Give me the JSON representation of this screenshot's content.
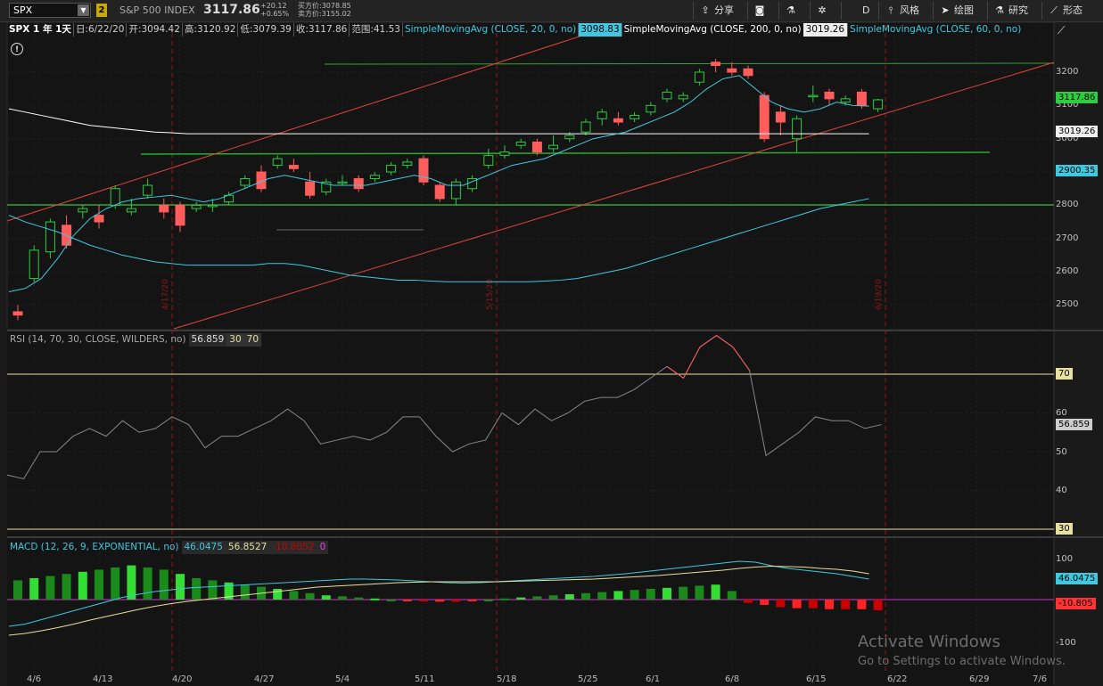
{
  "toolbar": {
    "symbol": "SPX",
    "link_badge": "2",
    "index_name": "S&P 500 INDEX",
    "last_price": "3117.86",
    "change_abs": "+20.12",
    "change_pct": "+0.65%",
    "bid": "买方价:3078.85",
    "ask": "卖方价:3155.02",
    "buttons": [
      {
        "icon": "share-icon",
        "label": "分享"
      },
      {
        "icon": "camera-icon",
        "label": ""
      },
      {
        "icon": "flask-icon",
        "label": ""
      },
      {
        "icon": "gear-icon",
        "label": ""
      },
      {
        "icon": "aggregation-icon",
        "label": "D"
      },
      {
        "icon": "style-icon",
        "label": "风格"
      },
      {
        "icon": "cursor-icon",
        "label": "绘图"
      },
      {
        "icon": "study-icon",
        "label": "研究"
      },
      {
        "icon": "pattern-icon",
        "label": "形态"
      }
    ]
  },
  "info": {
    "symbol_period": "SPX 1 年 1天",
    "date": "日:6/22/20",
    "open": "开:3094.42",
    "high": "高:3120.92",
    "low": "低:3079.39",
    "close": "收:3117.86",
    "range": "范围:41.53",
    "sma20_label": "SimpleMovingAvg (CLOSE, 20, 0, no)",
    "sma20_value": "3098.83",
    "sma200_label": "SimpleMovingAvg (CLOSE, 200, 0, no)",
    "sma200_value": "3019.26",
    "sma60_label": "SimpleMovingAvg (CLOSE, 60, 0, no)"
  },
  "price_axis": {
    "ticks": [
      "3200",
      "3100",
      "3000",
      "2900",
      "2800",
      "2700",
      "2600",
      "2500"
    ],
    "tags": {
      "last": "3117.86",
      "sma200": "3019.26",
      "sma60": "2900.35"
    }
  },
  "vlines": [
    "4/17/20",
    "5/15/20",
    "6/19/20"
  ],
  "rsi": {
    "label": "RSI (14, 70, 30, CLOSE, WILDERS, no)",
    "value": "56.859",
    "ob": "30",
    "os": "70",
    "ticks": [
      "70",
      "60",
      "50",
      "40",
      "30"
    ],
    "last_tag": "56.859",
    "values": [
      44,
      43,
      50,
      50,
      54,
      56,
      54,
      58,
      55,
      56,
      59,
      57,
      51,
      54,
      54,
      56,
      58,
      61,
      58,
      52,
      53,
      54,
      53,
      55,
      59,
      59,
      54,
      50,
      52,
      53,
      60,
      57,
      61,
      58,
      60,
      63,
      64,
      64,
      66,
      69,
      72,
      69,
      77,
      80,
      77,
      71,
      49,
      52,
      55,
      59,
      58,
      58,
      56,
      57
    ]
  },
  "macd": {
    "label": "MACD (12, 26, 9, EXPONENTIAL, no)",
    "v1": "46.0475",
    "v2": "56.8527",
    "v3": "-10.8052",
    "v4": "0",
    "ticks": [
      "100",
      "-100"
    ],
    "tag_macd": "46.0475",
    "tag_diff": "-10.805"
  },
  "x_axis": [
    "4/6",
    "4/13",
    "4/20",
    "4/27",
    "5/4",
    "5/11",
    "5/18",
    "5/25",
    "6/1",
    "6/8",
    "6/15",
    "6/22",
    "6/29",
    "7/6"
  ],
  "watermark": {
    "line1": "Activate Windows",
    "line2": "Go to Settings to activate Windows."
  },
  "colors": {
    "up": "#2ecc40",
    "down": "#ff5c5c",
    "sma20": "#3fc8e0",
    "sma200": "#ffffff",
    "trend": "#e0453a",
    "support": "#2ea82e"
  }
}
